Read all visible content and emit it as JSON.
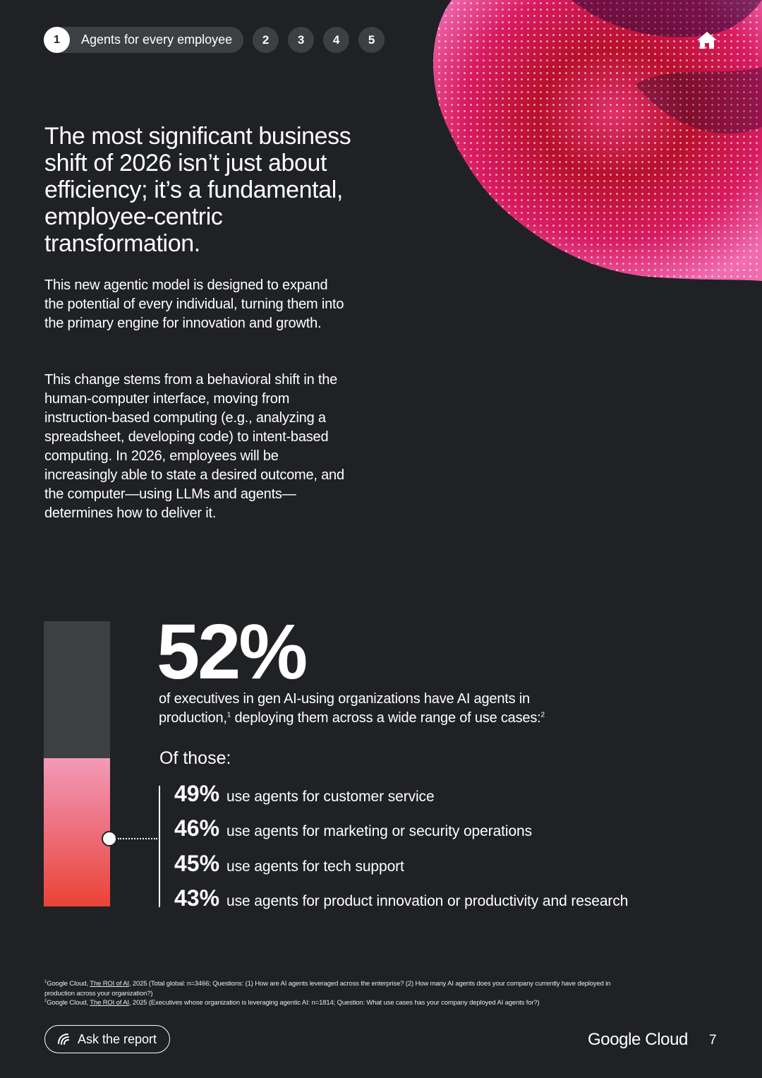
{
  "nav": {
    "active_number": "1",
    "active_label": "Agents for every employee",
    "numbers": [
      "2",
      "3",
      "4",
      "5"
    ]
  },
  "headline": "The most significant business shift of 2026 isn’t just about efficiency; it’s a fundamental, employee-centric transformation.",
  "paragraphs": [
    "This new agentic model is designed to expand the potential of every individual, turning them into the primary engine for innovation and growth.",
    "This change stems from a behavioral shift in the human-computer interface, moving from instruction-based computing (e.g., analyzing a spreadsheet, developing code) to intent-based computing. In 2026, employees will be increasingly able to state a desired outcome, and the computer—using LLMs and agents—determines how to deliver it."
  ],
  "stat": {
    "value": "52%",
    "fraction": 0.52,
    "desc_part1": "of executives in gen AI-using organizations have AI agents in production,",
    "desc_sup1": "1",
    "desc_part2": " deploying them across a wide range of use cases:",
    "desc_sup2": "2",
    "of_those": "Of those:",
    "uses": [
      {
        "pct": "49%",
        "text": "use agents for customer service"
      },
      {
        "pct": "46%",
        "text": "use agents for marketing or security operations"
      },
      {
        "pct": "45%",
        "text": "use agents for tech support"
      },
      {
        "pct": "43%",
        "text": "use agents for product innovation or productivity and research"
      }
    ]
  },
  "footnotes": [
    {
      "num": "1",
      "prefix": "Google Cloud, ",
      "ref": "The ROI of AI",
      "text": ", 2025 (Total global: n=3466; Questions: (1) How are AI agents leveraged across the enterprise? (2) How many AI agents does your company currently have deployed in production across your organization?)"
    },
    {
      "num": "2",
      "prefix": "Google Cloud, ",
      "ref": "The ROI of AI",
      "text": ", 2025 (Executives whose organization is leveraging agentic AI: n=1814; Question: What use cases has your company deployed AI agents for?)"
    }
  ],
  "footer": {
    "ask_label": "Ask the report",
    "brand": "Google Cloud",
    "page_number": "7"
  },
  "icons": {
    "home": "home-icon",
    "ask": "spark-chat-icon"
  },
  "colors": {
    "background": "#202124",
    "bar_track": "#3c4043",
    "bar_top": "#f29ab8",
    "bar_bottom": "#ea4335"
  }
}
